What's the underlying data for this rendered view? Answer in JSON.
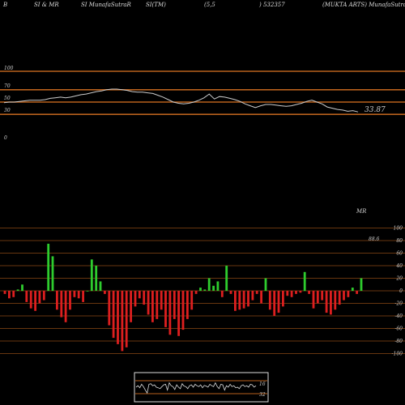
{
  "header": {
    "items": [
      "B",
      "SI & MR",
      "SI MunafaSutraR",
      "SI(TM)",
      "(5,5",
      ") 532357",
      "(MUKTA ARTS) MunafaSutra.com"
    ]
  },
  "rsi_panel": {
    "y_ticks": [
      "100",
      "70",
      "50",
      "30",
      "0"
    ],
    "levels": [
      100,
      70,
      50,
      30
    ],
    "current_value_label": "33.87",
    "series": [
      49,
      50,
      50,
      51,
      52,
      53,
      53,
      53,
      54,
      56,
      57,
      58,
      57,
      58,
      60,
      62,
      63,
      65,
      67,
      68,
      70,
      71,
      71,
      70,
      69,
      67,
      66,
      66,
      65,
      64,
      61,
      58,
      54,
      50,
      48,
      47,
      48,
      50,
      53,
      57,
      63,
      55,
      59,
      58,
      56,
      54,
      51,
      47,
      44,
      41,
      44,
      46,
      46,
      45,
      44,
      43,
      44,
      46,
      48,
      51,
      53,
      50,
      47,
      42,
      40,
      38,
      37,
      35,
      36,
      34
    ],
    "line_color": "#cccccc",
    "level_color": "#b8601c"
  },
  "mrsi_panel": {
    "title": "MR",
    "value_label": "88.6",
    "y_ticks": [
      "100",
      "80",
      "60",
      "40",
      "20",
      "0",
      "-20",
      "-40",
      "-60",
      "-80",
      "-100"
    ],
    "bars": [
      -5,
      -12,
      -10,
      2,
      10,
      -18,
      -28,
      -32,
      -20,
      -15,
      75,
      55,
      -30,
      -42,
      -50,
      -30,
      -10,
      -12,
      -18,
      0,
      50,
      40,
      15,
      -5,
      -55,
      -75,
      -85,
      -96,
      -90,
      -50,
      -25,
      -12,
      -22,
      -38,
      -50,
      -45,
      -30,
      -58,
      -70,
      -45,
      -72,
      -62,
      -45,
      -30,
      -5,
      5,
      2,
      20,
      8,
      15,
      -10,
      40,
      -5,
      -32,
      -30,
      -28,
      -25,
      -15,
      -5,
      -20,
      20,
      -30,
      -40,
      -35,
      -25,
      -8,
      -10,
      -5,
      -3,
      30,
      -5,
      -28,
      -20,
      -15,
      -35,
      -38,
      -30,
      -22,
      -15,
      -10,
      5,
      -5,
      20
    ],
    "positive_color": "#2ecc2e",
    "negative_color": "#dd1f1f",
    "grid_color": "#b8601c"
  },
  "mini_panel": {
    "labels": [
      "16",
      "32"
    ],
    "series": [
      50,
      55,
      48,
      60,
      52,
      40,
      30,
      60,
      62,
      55,
      58,
      50,
      48,
      45,
      52,
      58,
      60,
      40,
      65,
      55,
      52,
      42,
      58,
      50,
      45,
      62,
      54,
      52,
      45,
      55,
      58,
      50,
      60,
      55,
      52,
      58,
      48,
      56,
      54,
      50,
      60,
      55,
      52,
      65,
      52,
      45,
      60,
      58,
      40,
      55,
      50,
      60,
      52,
      55,
      48,
      50,
      45,
      55,
      58,
      52,
      55,
      50,
      60,
      58,
      50,
      55
    ]
  },
  "chart_data": [
    {
      "type": "line",
      "ylim": [
        0,
        100
      ],
      "y_ticks": [
        100,
        70,
        50,
        30,
        0
      ],
      "grid": true,
      "annotations": [
        "33.87"
      ],
      "series": [
        {
          "values": [
            49,
            50,
            50,
            51,
            52,
            53,
            53,
            53,
            54,
            56,
            57,
            58,
            57,
            58,
            60,
            62,
            63,
            65,
            67,
            68,
            70,
            71,
            71,
            70,
            69,
            67,
            66,
            66,
            65,
            64,
            61,
            58,
            54,
            50,
            48,
            47,
            48,
            50,
            53,
            57,
            63,
            55,
            59,
            58,
            56,
            54,
            51,
            47,
            44,
            41,
            44,
            46,
            46,
            45,
            44,
            43,
            44,
            46,
            48,
            51,
            53,
            50,
            47,
            42,
            40,
            38,
            37,
            35,
            36,
            34
          ]
        }
      ]
    },
    {
      "type": "bar",
      "title": "MR",
      "ylim": [
        -100,
        100
      ],
      "y_ticks": [
        100,
        80,
        60,
        40,
        20,
        0,
        -20,
        -40,
        -60,
        -80,
        -100
      ],
      "grid": true,
      "annotations": [
        "88.6"
      ],
      "series": [
        {
          "values": [
            -5,
            -12,
            -10,
            2,
            10,
            -18,
            -28,
            -32,
            -20,
            -15,
            75,
            55,
            -30,
            -42,
            -50,
            -30,
            -10,
            -12,
            -18,
            0,
            50,
            40,
            15,
            -5,
            -55,
            -75,
            -85,
            -96,
            -90,
            -50,
            -25,
            -12,
            -22,
            -38,
            -50,
            -45,
            -30,
            -58,
            -70,
            -45,
            -72,
            -62,
            -45,
            -30,
            -5,
            5,
            2,
            20,
            8,
            15,
            -10,
            40,
            -5,
            -32,
            -30,
            -28,
            -25,
            -15,
            -5,
            -20,
            20,
            -30,
            -40,
            -35,
            -25,
            -8,
            -10,
            -5,
            -3,
            30,
            -5,
            -28,
            -20,
            -15,
            -35,
            -38,
            -30,
            -22,
            -15,
            -10,
            5,
            -5,
            20
          ]
        }
      ]
    },
    {
      "type": "line",
      "annotations": [
        "16",
        "32"
      ],
      "series": [
        {
          "values": [
            50,
            55,
            48,
            60,
            52,
            40,
            30,
            60,
            62,
            55,
            58,
            50,
            48,
            45,
            52,
            58,
            60,
            40,
            65,
            55,
            52,
            42,
            58,
            50,
            45,
            62,
            54,
            52,
            45,
            55,
            58,
            50,
            60,
            55,
            52,
            58,
            48,
            56,
            54,
            50,
            60,
            55,
            52,
            65,
            52,
            45,
            60,
            58,
            40,
            55,
            50,
            60,
            52,
            55,
            48,
            50,
            45,
            55,
            58,
            52,
            55,
            50,
            60,
            58,
            50,
            55
          ]
        }
      ]
    }
  ]
}
